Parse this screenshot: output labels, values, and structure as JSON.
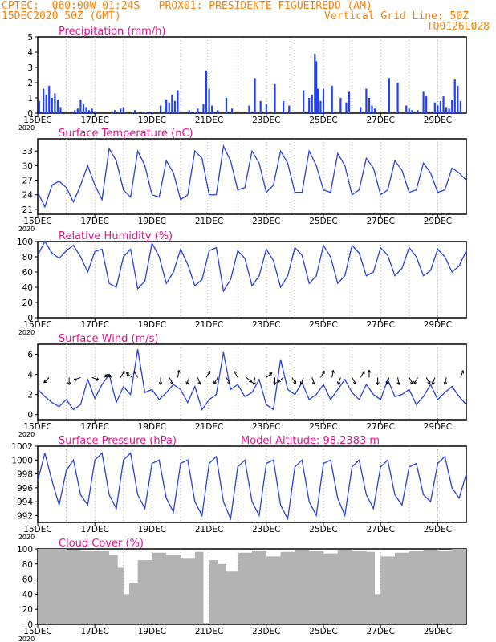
{
  "header": {
    "line1_left": "CPTEC:  060:00W-01:24S   PROX01: PRESIDENTE FIGUEIREDO (AM)",
    "line2_left": "15DEC2020 50Z (GMT)",
    "line2_right": "Vertical Grid Line: 50Z",
    "line3_right": "TQ0126L028"
  },
  "x_ticks": [
    "15DEC",
    "17DEC",
    "19DEC",
    "21DEC",
    "23DEC",
    "25DEC",
    "27DEC",
    "29DEC"
  ],
  "year_label": "2020",
  "colors": {
    "header": "#ff7f00",
    "panel_title": "#e8108c",
    "line": "#2840e0",
    "bar": "#1f3fff",
    "cloud": "#b3b3b3",
    "arrow": "#000000"
  },
  "chart_data": [
    {
      "type": "bar",
      "title": "Precipitation (mm/h)",
      "ylim": [
        0,
        5
      ],
      "yticks": [
        "0",
        "1",
        "2",
        "3",
        "4",
        "5"
      ],
      "xlim_days": [
        15,
        30
      ],
      "x_day": [
        15.05,
        15.2,
        15.3,
        15.4,
        15.5,
        15.6,
        15.7,
        15.8,
        16.3,
        16.4,
        16.5,
        16.6,
        16.7,
        16.8,
        16.9,
        17.0,
        17.7,
        17.9,
        18.0,
        18.4,
        18.8,
        19.0,
        19.3,
        19.5,
        19.6,
        19.7,
        19.8,
        19.9,
        20.3,
        20.5,
        20.6,
        20.8,
        20.9,
        21.0,
        21.1,
        21.3,
        21.6,
        21.8,
        22.4,
        22.6,
        22.8,
        23.0,
        23.3,
        23.6,
        23.8,
        24.3,
        24.5,
        24.6,
        24.7,
        24.75,
        24.8,
        24.9,
        25.0,
        25.3,
        25.6,
        25.8,
        25.9,
        26.3,
        26.5,
        26.6,
        26.7,
        26.8,
        27.3,
        27.6,
        27.9,
        28.0,
        28.1,
        28.3,
        28.5,
        28.6,
        28.9,
        29.0,
        29.1,
        29.2,
        29.3,
        29.4,
        29.5,
        29.6,
        29.7,
        29.8
      ],
      "values": [
        0.8,
        1.6,
        1.2,
        1.8,
        1.0,
        1.3,
        0.9,
        0.4,
        0.2,
        0.3,
        0.9,
        0.6,
        0.4,
        0.2,
        0.3,
        0.1,
        0.2,
        0.3,
        0.4,
        0.2,
        0.1,
        0.1,
        0.5,
        0.9,
        0.7,
        1.2,
        0.8,
        1.5,
        0.2,
        0.1,
        0.3,
        0.6,
        2.8,
        1.6,
        0.5,
        0.2,
        1.0,
        0.3,
        0.5,
        2.3,
        0.8,
        0.6,
        1.9,
        0.8,
        0.5,
        1.5,
        1.0,
        1.2,
        3.9,
        3.4,
        1.6,
        0.8,
        1.6,
        1.8,
        1.0,
        0.7,
        1.4,
        0.4,
        1.6,
        1.0,
        0.5,
        0.3,
        2.3,
        2.0,
        0.5,
        0.3,
        0.2,
        0.2,
        1.4,
        1.1,
        0.7,
        0.5,
        0.8,
        1.1,
        0.4,
        0.3,
        0.9,
        2.2,
        1.8,
        0.8
      ]
    },
    {
      "type": "line",
      "title": "Surface Temperature (nC)",
      "ylim": [
        20,
        35.5
      ],
      "yticks": [
        "21",
        "24",
        "27",
        "30",
        "33"
      ],
      "x_day": [
        15.0,
        15.25,
        15.5,
        15.75,
        16.0,
        16.25,
        16.5,
        16.75,
        17.0,
        17.25,
        17.5,
        17.75,
        18.0,
        18.25,
        18.5,
        18.75,
        19.0,
        19.25,
        19.5,
        19.75,
        20.0,
        20.25,
        20.5,
        20.75,
        21.0,
        21.25,
        21.5,
        21.75,
        22.0,
        22.25,
        22.5,
        22.75,
        23.0,
        23.25,
        23.5,
        23.75,
        24.0,
        24.25,
        24.5,
        24.75,
        25.0,
        25.25,
        25.5,
        25.75,
        26.0,
        26.25,
        26.5,
        26.75,
        27.0,
        27.25,
        27.5,
        27.75,
        28.0,
        28.25,
        28.5,
        28.75,
        29.0,
        29.25,
        29.5,
        29.75,
        30.0
      ],
      "values": [
        24.5,
        21.5,
        26,
        26.8,
        25.5,
        22.5,
        26,
        30,
        26,
        23,
        33.5,
        31,
        25,
        23.5,
        33,
        30,
        24,
        23.5,
        31,
        28.5,
        23,
        24,
        33,
        31.5,
        24,
        24,
        34,
        31,
        25,
        25.5,
        33,
        30.5,
        24.5,
        26,
        33,
        30.5,
        24.5,
        24.5,
        33,
        30,
        25,
        24.5,
        32.5,
        30,
        24,
        25,
        31.5,
        29.5,
        24,
        25,
        31,
        29,
        24.5,
        25,
        30.5,
        28.5,
        24.5,
        25,
        29.5,
        28.5,
        27
      ]
    },
    {
      "type": "line",
      "title": "Relative Humidity (%)",
      "ylim": [
        0,
        100
      ],
      "yticks": [
        "0",
        "20",
        "40",
        "60",
        "80",
        "100"
      ],
      "x_day": [
        15.0,
        15.25,
        15.5,
        15.75,
        16.0,
        16.25,
        16.5,
        16.75,
        17.0,
        17.25,
        17.5,
        17.75,
        18.0,
        18.25,
        18.5,
        18.75,
        19.0,
        19.25,
        19.5,
        19.75,
        20.0,
        20.25,
        20.5,
        20.75,
        21.0,
        21.25,
        21.5,
        21.75,
        22.0,
        22.25,
        22.5,
        22.75,
        23.0,
        23.25,
        23.5,
        23.75,
        24.0,
        24.25,
        24.5,
        24.75,
        25.0,
        25.25,
        25.5,
        25.75,
        26.0,
        26.25,
        26.5,
        26.75,
        27.0,
        27.25,
        27.5,
        27.75,
        28.0,
        28.25,
        28.5,
        28.75,
        29.0,
        29.25,
        29.5,
        29.75,
        30.0
      ],
      "values": [
        82,
        100,
        85,
        78,
        88,
        95,
        80,
        60,
        87,
        90,
        45,
        40,
        80,
        90,
        38,
        48,
        98,
        80,
        45,
        60,
        90,
        70,
        42,
        50,
        88,
        92,
        35,
        50,
        88,
        78,
        42,
        55,
        90,
        75,
        40,
        55,
        92,
        82,
        45,
        55,
        95,
        80,
        45,
        55,
        95,
        85,
        55,
        60,
        92,
        82,
        55,
        65,
        92,
        80,
        55,
        62,
        90,
        80,
        60,
        68,
        88
      ]
    },
    {
      "type": "line",
      "title": "Surface Wind (m/s)",
      "ylim": [
        -0.5,
        7
      ],
      "yticks": [
        "0",
        "2",
        "4",
        "6"
      ],
      "x_day": [
        15.0,
        15.25,
        15.5,
        15.75,
        16.0,
        16.25,
        16.5,
        16.75,
        17.0,
        17.25,
        17.5,
        17.75,
        18.0,
        18.25,
        18.5,
        18.75,
        19.0,
        19.25,
        19.5,
        19.75,
        20.0,
        20.25,
        20.5,
        20.75,
        21.0,
        21.25,
        21.5,
        21.75,
        22.0,
        22.25,
        22.5,
        22.75,
        23.0,
        23.25,
        23.5,
        23.75,
        24.0,
        24.25,
        24.5,
        24.75,
        25.0,
        25.25,
        25.5,
        25.75,
        26.0,
        26.25,
        26.5,
        26.75,
        27.0,
        27.25,
        27.5,
        27.75,
        28.0,
        28.25,
        28.5,
        28.75,
        29.0,
        29.25,
        29.5,
        29.75,
        30.0
      ],
      "values": [
        2.5,
        1.8,
        1.2,
        0.8,
        1.5,
        0.5,
        1.0,
        3.5,
        1.6,
        3.0,
        4.0,
        1.2,
        2.8,
        2.0,
        6.5,
        2.2,
        2.5,
        1.5,
        2.2,
        3.0,
        2.5,
        1.2,
        2.8,
        0.5,
        1.5,
        2.0,
        6.2,
        2.5,
        3.0,
        1.8,
        2.2,
        3.5,
        1.0,
        0.5,
        5.5,
        2.5,
        2.0,
        3.2,
        1.5,
        2.0,
        3.0,
        1.5,
        2.5,
        3.5,
        2.2,
        1.5,
        3.0,
        2.0,
        1.5,
        3.5,
        1.8,
        2.0,
        2.5,
        1.0,
        1.8,
        3.0,
        1.5,
        2.2,
        2.8,
        1.8,
        1.0
      ],
      "arrow_days": [
        15.4,
        16.1,
        16.5,
        16.9,
        17.3,
        17.6,
        17.9,
        18.3,
        18.5,
        19.3,
        19.6,
        19.9,
        20.3,
        20.6,
        20.9,
        21.3,
        21.6,
        22.0,
        22.3,
        22.6,
        23.0,
        23.3,
        23.6,
        23.9,
        24.3,
        24.6,
        24.9,
        25.3,
        25.6,
        26.0,
        26.3,
        26.6,
        26.9,
        27.3,
        27.6,
        28.0,
        28.3,
        28.6,
        28.9,
        29.3,
        29.8
      ],
      "arrow_angles_deg": [
        225,
        270,
        200,
        340,
        20,
        160,
        60,
        140,
        120,
        270,
        300,
        80,
        250,
        290,
        60,
        240,
        300,
        120,
        320,
        260,
        40,
        270,
        220,
        300,
        250,
        290,
        60,
        80,
        250,
        300,
        60,
        90,
        270,
        250,
        280,
        300,
        240,
        300,
        250,
        260,
        70
      ]
    },
    {
      "type": "line",
      "title": "Surface Pressure (hPa)",
      "annotation": "Model Altitude: 98.2383 m",
      "ylim": [
        991,
        1002
      ],
      "yticks": [
        "992",
        "994",
        "996",
        "998",
        "1000",
        "1002"
      ],
      "x_day": [
        15.0,
        15.25,
        15.5,
        15.75,
        16.0,
        16.25,
        16.5,
        16.75,
        17.0,
        17.25,
        17.5,
        17.75,
        18.0,
        18.25,
        18.5,
        18.75,
        19.0,
        19.25,
        19.5,
        19.75,
        20.0,
        20.25,
        20.5,
        20.75,
        21.0,
        21.25,
        21.5,
        21.75,
        22.0,
        22.25,
        22.5,
        22.75,
        23.0,
        23.25,
        23.5,
        23.75,
        24.0,
        24.25,
        24.5,
        24.75,
        25.0,
        25.25,
        25.5,
        25.75,
        26.0,
        26.25,
        26.5,
        26.75,
        27.0,
        27.25,
        27.5,
        27.75,
        28.0,
        28.25,
        28.5,
        28.75,
        29.0,
        29.25,
        29.5,
        29.75,
        30.0
      ],
      "values": [
        997,
        1001,
        997,
        993.5,
        998.5,
        1000,
        995,
        993.5,
        1000,
        1001,
        995,
        993,
        1000,
        1001,
        995,
        993,
        999.5,
        1000,
        994.5,
        992.5,
        999.5,
        1000,
        994,
        992,
        999.5,
        1000.5,
        994,
        991.5,
        999,
        1000,
        994,
        992,
        999.5,
        1000,
        993.5,
        991.5,
        999,
        1000,
        994,
        992,
        999.5,
        1000,
        994.5,
        992,
        999,
        1000,
        995,
        993,
        999,
        1000,
        995,
        993.5,
        999,
        999.5,
        995,
        994,
        999.5,
        1000.5,
        996,
        994.5,
        998
      ]
    },
    {
      "type": "bar",
      "title": "Cloud Cover (%)",
      "ylim": [
        0,
        100
      ],
      "yticks": [
        "0",
        "20",
        "40",
        "60",
        "80",
        "100"
      ],
      "x_day": [
        15.0,
        15.5,
        16.0,
        16.5,
        17.0,
        17.5,
        17.8,
        18.0,
        18.2,
        18.5,
        19.0,
        19.5,
        20.0,
        20.5,
        20.8,
        21.0,
        21.3,
        21.6,
        22.0,
        22.5,
        23.0,
        23.5,
        24.0,
        24.5,
        25.0,
        25.5,
        26.0,
        26.5,
        26.8,
        27.0,
        27.5,
        28.0,
        28.5,
        29.0,
        29.5
      ],
      "values": [
        100,
        100,
        99,
        98,
        97,
        92,
        75,
        40,
        55,
        85,
        95,
        92,
        88,
        96,
        2,
        85,
        80,
        70,
        95,
        98,
        90,
        96,
        99,
        97,
        94,
        99,
        98,
        96,
        40,
        90,
        95,
        97,
        99,
        98,
        100
      ]
    }
  ]
}
